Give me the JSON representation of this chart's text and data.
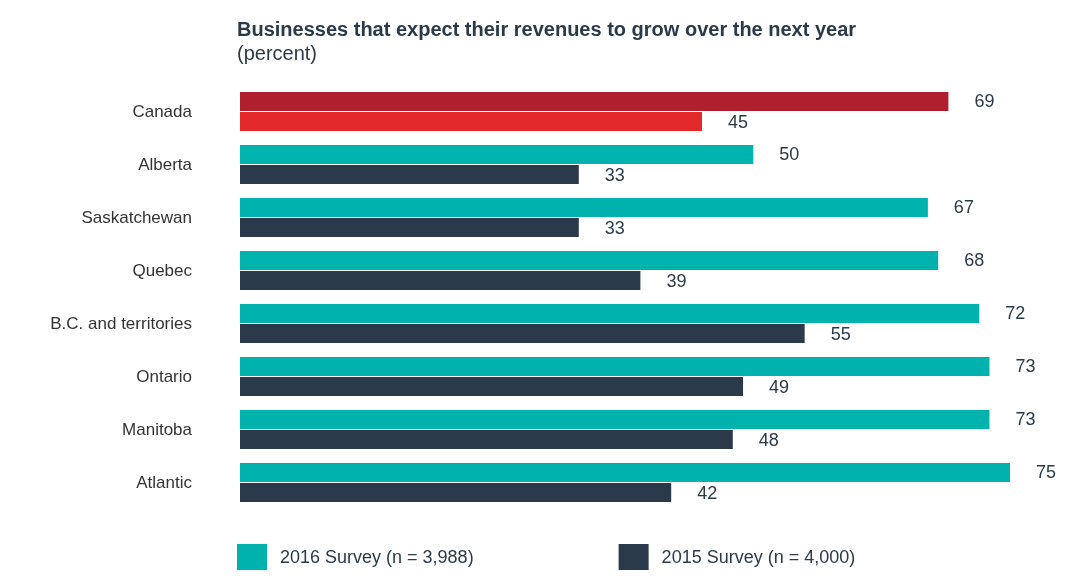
{
  "chart_data": {
    "type": "bar",
    "orientation": "horizontal",
    "title": "Businesses that expect their revenues to grow over the next year",
    "subtitle": "(percent)",
    "categories": [
      "Canada",
      "Alberta",
      "Saskatchewan",
      "Quebec",
      "B.C. and territories",
      "Ontario",
      "Manitoba",
      "Atlantic"
    ],
    "series": [
      {
        "name": "2016 Survey (n = 3,988)",
        "color": "#00b2ad",
        "colors": [
          "#b01f2e",
          "#00b2ad",
          "#00b2ad",
          "#00b2ad",
          "#00b2ad",
          "#00b2ad",
          "#00b2ad",
          "#00b2ad"
        ],
        "values": [
          69,
          50,
          67,
          68,
          72,
          73,
          73,
          75
        ]
      },
      {
        "name": "2015 Survey (n = 4,000)",
        "color": "#2b3a4a",
        "colors": [
          "#e3292b",
          "#2b3a4a",
          "#2b3a4a",
          "#2b3a4a",
          "#2b3a4a",
          "#2b3a4a",
          "#2b3a4a",
          "#2b3a4a"
        ],
        "values": [
          45,
          33,
          33,
          39,
          55,
          49,
          48,
          42
        ]
      }
    ],
    "data_labels": true,
    "legend": "bottom left"
  }
}
